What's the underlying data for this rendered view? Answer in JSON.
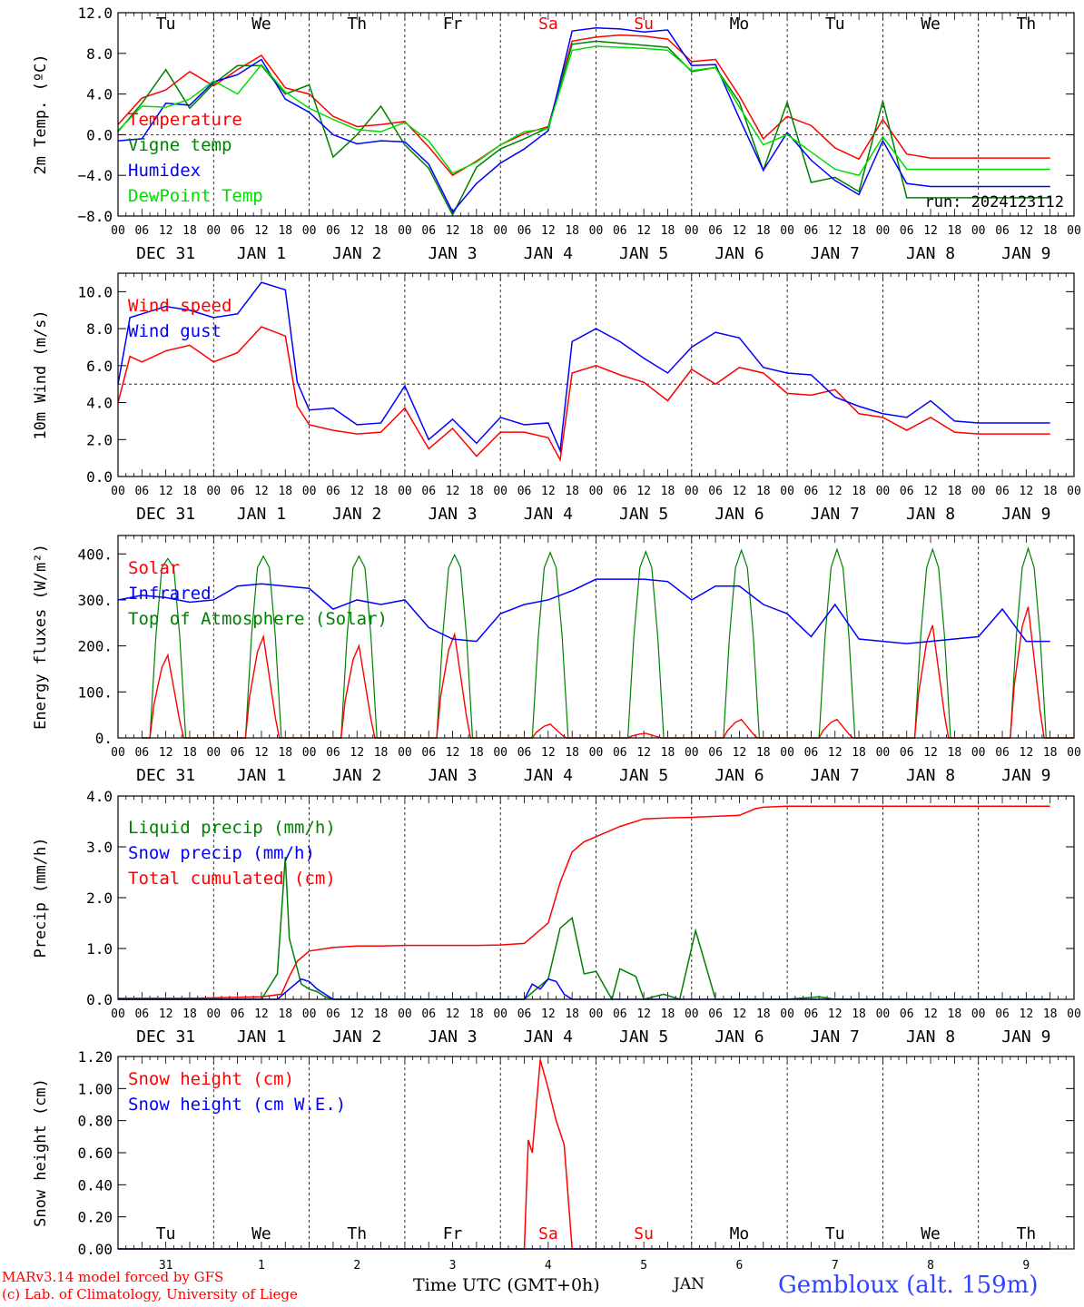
{
  "time_axis": {
    "hour_ticks": [
      "00",
      "06",
      "12",
      "18"
    ],
    "date_labels": [
      "DEC 31",
      "JAN  1",
      "JAN  2",
      "JAN  3",
      "JAN  4",
      "JAN  5",
      "JAN  6",
      "JAN  7",
      "JAN  8",
      "JAN  9"
    ],
    "weekdays": [
      "Tu",
      "We",
      "Th",
      "Fr",
      "Sa",
      "Su",
      "Mo",
      "Tu",
      "We",
      "Th"
    ],
    "weekend_color": "#ff0000",
    "bottom_day_numbers": [
      "31",
      "1",
      "2",
      "3",
      "4",
      "5",
      "6",
      "7",
      "8",
      "9"
    ],
    "bottom_month": "JAN",
    "bottom_title": "Time UTC (GMT+0h)"
  },
  "footer": {
    "model_line": "MARv3.14 model forced by GFS",
    "credit_line": "(c) Lab. of Climatology, University of Liege",
    "location": "Gembloux (alt. 159m)"
  },
  "colors": {
    "red": "#ff0000",
    "green": "#008000",
    "blue": "#0000ff",
    "light_green": "#00dd00",
    "axis": "#000000"
  },
  "chart_data": [
    {
      "type": "line",
      "ylabel": "2m Temp. (ºC)",
      "yticks": [
        "12.0",
        "8.0",
        "4.0",
        "0.0",
        "−4.0",
        "−8.0"
      ],
      "ylim": [
        -8,
        12
      ],
      "ref_line": 0,
      "annotation": "run: 2024123112",
      "legend": [
        "Temperature",
        "Vigne temp",
        "Humidex",
        "DewPoint Temp"
      ],
      "series": [
        {
          "name": "Temperature",
          "color": "red",
          "x": [
            0,
            6,
            12,
            18,
            24,
            30,
            36,
            42,
            48,
            54,
            60,
            66,
            72,
            78,
            84,
            90,
            96,
            102,
            108,
            114,
            120,
            126,
            132,
            138,
            144,
            150,
            156,
            162,
            168,
            174,
            180,
            186,
            192,
            198,
            204,
            210,
            216,
            222,
            228,
            234
          ],
          "y": [
            1.0,
            3.6,
            4.4,
            6.2,
            4.8,
            6.4,
            7.8,
            4.6,
            4.0,
            1.8,
            0.8,
            1.0,
            1.3,
            -1.2,
            -4.0,
            -2.6,
            -1.0,
            0.1,
            0.8,
            9.2,
            9.6,
            9.8,
            9.7,
            9.4,
            7.2,
            7.4,
            3.8,
            -0.4,
            1.8,
            0.9,
            -1.3,
            -2.4,
            1.5,
            -1.9,
            -2.3,
            -2.3,
            -2.3,
            -2.3,
            -2.3,
            -2.3
          ]
        },
        {
          "name": "Vigne temp",
          "color": "green",
          "x": [
            0,
            6,
            12,
            18,
            24,
            30,
            36,
            42,
            48,
            54,
            60,
            66,
            72,
            78,
            84,
            90,
            96,
            102,
            108,
            114,
            120,
            126,
            132,
            138,
            144,
            150,
            156,
            162,
            168,
            174,
            180,
            186,
            192,
            198,
            204,
            210,
            216,
            222,
            228,
            234
          ],
          "y": [
            0.3,
            3.1,
            6.4,
            2.6,
            5.0,
            6.8,
            6.8,
            4.0,
            4.9,
            -2.2,
            0.0,
            2.8,
            -1.0,
            -3.3,
            -7.9,
            -3.2,
            -1.4,
            -0.4,
            0.7,
            8.9,
            9.2,
            9.0,
            8.8,
            8.6,
            6.2,
            6.6,
            3.2,
            -3.5,
            3.2,
            -4.7,
            -4.2,
            -5.6,
            3.3,
            -6.2,
            -6.2,
            -6.2,
            -6.2,
            -6.2,
            -6.2,
            -6.2
          ]
        },
        {
          "name": "Humidex",
          "color": "blue",
          "x": [
            0,
            6,
            12,
            18,
            24,
            30,
            36,
            42,
            48,
            54,
            60,
            66,
            72,
            78,
            84,
            90,
            96,
            102,
            108,
            114,
            120,
            126,
            132,
            138,
            144,
            150,
            156,
            162,
            168,
            174,
            180,
            186,
            192,
            198,
            204,
            210,
            216,
            222,
            228,
            234
          ],
          "y": [
            -0.6,
            -0.4,
            3.1,
            2.9,
            5.2,
            5.9,
            7.4,
            3.5,
            2.2,
            0.0,
            -0.9,
            -0.6,
            -0.7,
            -2.9,
            -7.6,
            -4.8,
            -2.8,
            -1.4,
            0.4,
            10.2,
            10.5,
            10.4,
            10.1,
            10.3,
            6.8,
            6.9,
            1.6,
            -3.5,
            0.2,
            -2.5,
            -4.5,
            -5.9,
            -0.6,
            -4.8,
            -5.1,
            -5.1,
            -5.1,
            -5.1,
            -5.1,
            -5.1
          ]
        },
        {
          "name": "DewPoint Temp",
          "color": "light_green",
          "x": [
            0,
            6,
            12,
            18,
            24,
            30,
            36,
            42,
            48,
            54,
            60,
            66,
            72,
            78,
            84,
            90,
            96,
            102,
            108,
            114,
            120,
            126,
            132,
            138,
            144,
            150,
            156,
            162,
            168,
            174,
            180,
            186,
            192,
            198,
            204,
            210,
            216,
            222,
            228,
            234
          ],
          "y": [
            0.4,
            2.8,
            2.7,
            3.5,
            5.3,
            4.0,
            6.9,
            4.2,
            2.6,
            1.5,
            0.5,
            0.3,
            1.2,
            -0.6,
            -3.8,
            -2.7,
            -1.0,
            0.3,
            0.6,
            8.3,
            8.7,
            8.6,
            8.5,
            8.3,
            6.3,
            6.6,
            2.7,
            -1.0,
            0.0,
            -1.7,
            -3.4,
            -4.0,
            -0.2,
            -3.4,
            -3.4,
            -3.4,
            -3.4,
            -3.4,
            -3.4,
            -3.4
          ]
        }
      ]
    },
    {
      "type": "line",
      "ylabel": "10m Wind (m/s)",
      "yticks": [
        "10.0",
        "8.0",
        "6.0",
        "4.0",
        "2.0",
        "0.0"
      ],
      "ylim": [
        0,
        11
      ],
      "ref_line": 5,
      "legend": [
        "Wind speed",
        "Wind gust"
      ],
      "series": [
        {
          "name": "Wind speed",
          "color": "red",
          "x": [
            0,
            3,
            6,
            12,
            18,
            24,
            30,
            36,
            42,
            45,
            48,
            54,
            60,
            66,
            72,
            78,
            84,
            90,
            96,
            102,
            108,
            111,
            114,
            120,
            126,
            132,
            138,
            144,
            150,
            156,
            162,
            168,
            174,
            180,
            186,
            192,
            198,
            204,
            210,
            216,
            222,
            228,
            234
          ],
          "y": [
            4.0,
            6.5,
            6.2,
            6.8,
            7.1,
            6.2,
            6.7,
            8.1,
            7.6,
            3.8,
            2.8,
            2.5,
            2.3,
            2.4,
            3.7,
            1.5,
            2.6,
            1.1,
            2.4,
            2.4,
            2.1,
            0.9,
            5.6,
            6.0,
            5.5,
            5.1,
            4.1,
            5.8,
            5.0,
            5.9,
            5.6,
            4.5,
            4.4,
            4.7,
            3.4,
            3.2,
            2.5,
            3.2,
            2.4,
            2.3,
            2.3,
            2.3,
            2.3
          ]
        },
        {
          "name": "Wind gust",
          "color": "blue",
          "x": [
            0,
            3,
            6,
            12,
            18,
            24,
            30,
            36,
            42,
            45,
            48,
            54,
            60,
            66,
            72,
            78,
            84,
            90,
            96,
            102,
            108,
            111,
            114,
            120,
            126,
            132,
            138,
            144,
            150,
            156,
            162,
            168,
            174,
            180,
            186,
            192,
            198,
            204,
            210,
            216,
            222,
            228,
            234
          ],
          "y": [
            5.0,
            8.6,
            8.8,
            9.2,
            9.0,
            8.6,
            8.8,
            10.5,
            10.1,
            5.1,
            3.6,
            3.7,
            2.8,
            2.9,
            4.9,
            2.0,
            3.1,
            1.8,
            3.2,
            2.8,
            2.9,
            1.4,
            7.3,
            8.0,
            7.3,
            6.4,
            5.6,
            7.0,
            7.8,
            7.5,
            5.9,
            5.6,
            5.5,
            4.3,
            3.8,
            3.4,
            3.2,
            4.1,
            3.0,
            2.9,
            2.9,
            2.9,
            2.9
          ]
        }
      ]
    },
    {
      "type": "line",
      "ylabel": "Energy fluxes (W/m²)",
      "yticks": [
        "400.",
        "300.",
        "200.",
        "100.",
        "0."
      ],
      "ylim": [
        0,
        440
      ],
      "legend": [
        "Solar",
        "Infrared",
        "Top of Atmosphere (Solar)"
      ],
      "toa_peaks": [
        390,
        395,
        395,
        398,
        403,
        405,
        408,
        410,
        410,
        412
      ],
      "solar_peaks": [
        180,
        220,
        200,
        225,
        30,
        10,
        40,
        40,
        245,
        285
      ],
      "series": [
        {
          "name": "Infrared",
          "color": "blue",
          "x": [
            0,
            6,
            12,
            18,
            24,
            30,
            36,
            42,
            48,
            54,
            60,
            66,
            72,
            78,
            84,
            90,
            96,
            102,
            108,
            114,
            120,
            126,
            132,
            138,
            144,
            150,
            156,
            162,
            168,
            174,
            180,
            186,
            192,
            198,
            204,
            210,
            216,
            222,
            228,
            234
          ],
          "y": [
            300,
            310,
            305,
            295,
            300,
            330,
            335,
            330,
            325,
            280,
            300,
            290,
            300,
            240,
            215,
            210,
            270,
            290,
            300,
            320,
            345,
            345,
            345,
            340,
            300,
            330,
            330,
            290,
            270,
            220,
            290,
            215,
            210,
            205,
            210,
            215,
            220,
            280,
            210,
            210
          ]
        }
      ]
    },
    {
      "type": "line",
      "ylabel": "Precip (mm/h)",
      "yticks": [
        "4.0",
        "3.0",
        "2.0",
        "1.0",
        "0.0"
      ],
      "ylim": [
        0,
        4
      ],
      "legend": [
        "Liquid precip (mm/h)",
        "Snow precip (mm/h)",
        "Total cumulated (cm)"
      ],
      "series": [
        {
          "name": "Total cumulated (cm)",
          "color": "red",
          "x": [
            0,
            18,
            24,
            30,
            36,
            41,
            43,
            45,
            48,
            54,
            60,
            66,
            72,
            78,
            84,
            90,
            96,
            102,
            108,
            111,
            114,
            117,
            120,
            126,
            132,
            138,
            144,
            150,
            156,
            160,
            162,
            168,
            174,
            180,
            186,
            192,
            198,
            204,
            210,
            216,
            222,
            228,
            234
          ],
          "y": [
            0.02,
            0.02,
            0.03,
            0.04,
            0.05,
            0.1,
            0.45,
            0.75,
            0.95,
            1.02,
            1.05,
            1.05,
            1.06,
            1.06,
            1.06,
            1.06,
            1.07,
            1.1,
            1.5,
            2.3,
            2.9,
            3.1,
            3.2,
            3.4,
            3.55,
            3.57,
            3.58,
            3.6,
            3.62,
            3.75,
            3.78,
            3.8,
            3.8,
            3.8,
            3.8,
            3.8,
            3.8,
            3.8,
            3.8,
            3.8,
            3.8,
            3.8,
            3.8
          ]
        },
        {
          "name": "Liquid precip (mm/h)",
          "color": "green",
          "x": [
            0,
            36,
            40,
            42,
            43,
            44,
            46,
            48,
            50,
            52,
            54,
            60,
            102,
            108,
            111,
            114,
            117,
            120,
            124,
            126,
            130,
            132,
            137,
            141,
            145,
            150,
            168,
            176,
            180,
            186,
            192,
            198,
            204,
            210,
            216,
            222,
            228,
            234
          ],
          "y": [
            0,
            0,
            0.5,
            2.8,
            1.2,
            0.9,
            0.3,
            0.2,
            0.15,
            0.05,
            0,
            0,
            0,
            0.4,
            1.4,
            1.6,
            0.5,
            0.55,
            0,
            0.6,
            0.45,
            0,
            0.1,
            0,
            1.35,
            0,
            0,
            0.05,
            0,
            0,
            0,
            0,
            0,
            0,
            0,
            0,
            0,
            0
          ]
        },
        {
          "name": "Snow precip (mm/h)",
          "color": "blue",
          "x": [
            0,
            40,
            46,
            48,
            50,
            52,
            54,
            60,
            102,
            104,
            106,
            108,
            110,
            112,
            114,
            120,
            234
          ],
          "y": [
            0,
            0,
            0.4,
            0.35,
            0.2,
            0.1,
            0,
            0,
            0,
            0.3,
            0.2,
            0.4,
            0.35,
            0.1,
            0,
            0,
            0
          ]
        }
      ]
    },
    {
      "type": "line",
      "ylabel": "Snow height (cm)",
      "yticks": [
        "1.20",
        "1.00",
        "0.80",
        "0.60",
        "0.40",
        "0.20",
        "0.00"
      ],
      "ylim": [
        0,
        1.2
      ],
      "legend": [
        "Snow height (cm)",
        "Snow height (cm W.E.)"
      ],
      "series": [
        {
          "name": "Snow height (cm)",
          "color": "red",
          "x": [
            0,
            102,
            103,
            104,
            106,
            108,
            110,
            112,
            114,
            116,
            234
          ],
          "y": [
            0,
            0,
            0.68,
            0.6,
            1.18,
            1.0,
            0.8,
            0.65,
            0,
            0,
            0
          ]
        },
        {
          "name": "Snow height (cm W.E.)",
          "color": "blue",
          "x": [
            0,
            234
          ],
          "y": [
            0,
            0
          ]
        }
      ]
    }
  ]
}
